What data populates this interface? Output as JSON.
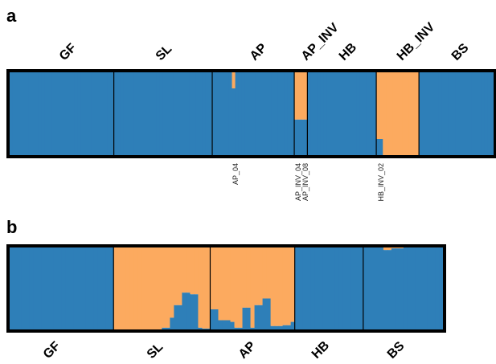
{
  "colors": {
    "cluster1": "#2e7fb8",
    "cluster2": "#fcaa5f",
    "frame": "#000000",
    "divider": "#000000"
  },
  "chart_data": [
    {
      "panel": "a",
      "type": "bar",
      "stacked": true,
      "series": [
        {
          "color": "#2e7fb8"
        },
        {
          "color": "#fcaa5f"
        }
      ],
      "ylim": [
        0,
        1
      ],
      "groups": [
        {
          "label": "GF",
          "n": 32,
          "blue": []
        },
        {
          "label": "SL",
          "n": 30,
          "blue": []
        },
        {
          "label": "AP",
          "n": 25,
          "blue": [
            1,
            1,
            1,
            1,
            1,
            1,
            0.8,
            1,
            1,
            1,
            1,
            1,
            1,
            1,
            1,
            1,
            1,
            1,
            1,
            1,
            1,
            1,
            1,
            1,
            1
          ]
        },
        {
          "label": "AP_INV",
          "n": 4,
          "blue": [
            0.43,
            0.43,
            0.43,
            0.43
          ]
        },
        {
          "label": "HB",
          "n": 21,
          "blue": []
        },
        {
          "label": "HB_INV",
          "n": 13,
          "blue": [
            0.2,
            0.2,
            0,
            0,
            0,
            0,
            0,
            0,
            0,
            0,
            0,
            0,
            0
          ]
        },
        {
          "label": "BS",
          "n": 23,
          "blue": []
        }
      ],
      "annotations": [
        {
          "text": "AP_04",
          "group": 2,
          "index": 6
        },
        {
          "text": "AP_INV_04",
          "group": 3,
          "index": 0
        },
        {
          "text": "AP_INV_08",
          "group": 3,
          "index": 3
        },
        {
          "text": "HB_INV_02",
          "group": 5,
          "index": 0
        }
      ]
    },
    {
      "panel": "b",
      "type": "bar",
      "stacked": true,
      "series": [
        {
          "color": "#2e7fb8"
        },
        {
          "color": "#fcaa5f"
        }
      ],
      "ylim": [
        0,
        1
      ],
      "groups": [
        {
          "label": "GF",
          "n": 26,
          "blue": []
        },
        {
          "label": "SL",
          "n": 24,
          "blue": [
            0,
            0,
            0,
            0,
            0,
            0,
            0,
            0,
            0,
            0,
            0,
            0,
            0.03,
            0.03,
            0.15,
            0.3,
            0.3,
            0.45,
            0.45,
            0.43,
            0.43,
            0.03,
            0.02,
            0.02
          ]
        },
        {
          "label": "AP",
          "n": 21,
          "blue": [
            0.25,
            0.25,
            0.12,
            0.12,
            0.12,
            0.1,
            0.03,
            0.03,
            0.27,
            0.27,
            0.03,
            0.3,
            0.3,
            0.38,
            0.38,
            0.05,
            0.05,
            0.05,
            0.06,
            0.06,
            0.1
          ]
        },
        {
          "label": "HB",
          "n": 17,
          "blue": []
        },
        {
          "label": "BS",
          "n": 20,
          "blue": [
            1,
            1,
            1,
            1,
            1,
            0.96,
            0.96,
            0.98,
            0.98,
            0.98,
            0.99,
            0.99,
            0.99,
            0.99,
            0.99,
            0.99,
            0.99,
            0.99,
            0.99,
            1
          ]
        }
      ]
    }
  ],
  "panels": {
    "a": {
      "letter": "a",
      "labels": [
        "GF",
        "SL",
        "AP",
        "AP_INV",
        "HB",
        "HB_INV",
        "BS"
      ],
      "annotations": [
        "AP_04",
        "AP_INV_04",
        "AP_INV_08",
        "HB_INV_02"
      ]
    },
    "b": {
      "letter": "b",
      "labels": [
        "GF",
        "SL",
        "AP",
        "HB",
        "BS"
      ]
    }
  }
}
